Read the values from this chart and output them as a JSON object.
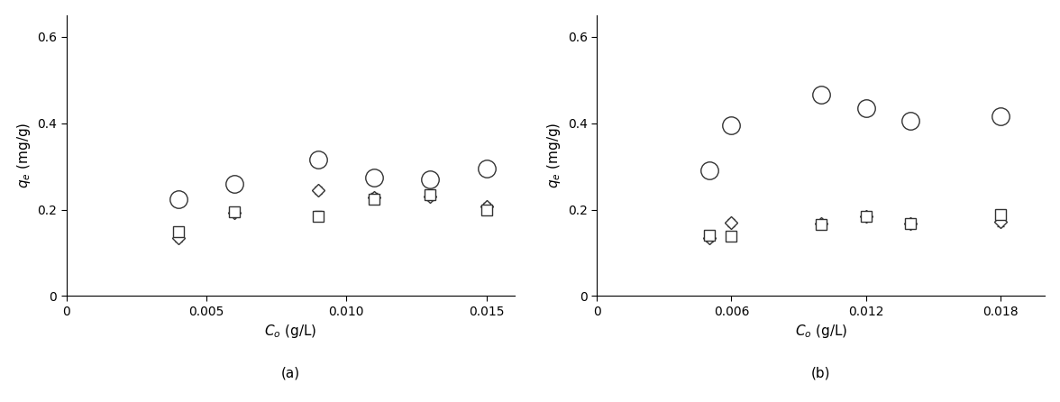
{
  "panel_a": {
    "xlabel_text": "C",
    "xlabel_sub": "o",
    "xlabel_unit": " (g/L)",
    "ylabel_text": "q",
    "ylabel_sub": "e",
    "ylabel_unit": " (mg/g)",
    "label": "(a)",
    "xlim": [
      0,
      0.016
    ],
    "ylim": [
      0,
      0.65
    ],
    "xticks": [
      0,
      0.005,
      0.01,
      0.015
    ],
    "xtick_labels": [
      "0",
      "0.005",
      "0.010",
      "0.015"
    ],
    "yticks": [
      0,
      0.2,
      0.4,
      0.6
    ],
    "ytick_labels": [
      "0",
      "0.2",
      "0.4",
      "0.6"
    ],
    "KN_x": [
      0.004,
      0.006,
      0.009,
      0.011,
      0.013,
      0.015
    ],
    "KN_y": [
      0.135,
      0.192,
      0.245,
      0.228,
      0.23,
      0.207
    ],
    "KN_yerr": [
      0.008,
      0.008,
      0.008,
      0.01,
      0.008,
      0.008
    ],
    "KA_x": [
      0.004,
      0.006,
      0.009,
      0.011,
      0.013,
      0.015
    ],
    "KA_y": [
      0.148,
      0.195,
      0.185,
      0.225,
      0.235,
      0.2
    ],
    "KA_yerr": [
      0.01,
      0.008,
      0.012,
      0.008,
      0.008,
      0.01
    ],
    "KB_x": [
      0.004,
      0.006,
      0.009,
      0.011,
      0.013,
      0.015
    ],
    "KB_y": [
      0.225,
      0.26,
      0.315,
      0.275,
      0.27,
      0.295
    ],
    "KB_yerr": [
      0.012,
      0.01,
      0.01,
      0.01,
      0.01,
      0.01
    ]
  },
  "panel_b": {
    "xlabel_text": "C",
    "xlabel_sub": "o",
    "xlabel_unit": " (g/L)",
    "ylabel_text": "q",
    "ylabel_sub": "e",
    "ylabel_unit": " (mg/g)",
    "label": "(b)",
    "xlim": [
      0,
      0.02
    ],
    "ylim": [
      0,
      0.65
    ],
    "xticks": [
      0,
      0.006,
      0.012,
      0.018
    ],
    "xtick_labels": [
      "0",
      "0.006",
      "0.012",
      "0.018"
    ],
    "yticks": [
      0,
      0.2,
      0.4,
      0.6
    ],
    "ytick_labels": [
      "0",
      "0.2",
      "0.4",
      "0.6"
    ],
    "KN_x": [
      0.005,
      0.006,
      0.01,
      0.012,
      0.014,
      0.018
    ],
    "KN_y": [
      0.135,
      0.17,
      0.168,
      0.185,
      0.168,
      0.172
    ],
    "KN_yerr": [
      0.008,
      0.008,
      0.008,
      0.01,
      0.008,
      0.01
    ],
    "KA_x": [
      0.005,
      0.006,
      0.01,
      0.012,
      0.014,
      0.018
    ],
    "KA_y": [
      0.14,
      0.138,
      0.165,
      0.185,
      0.168,
      0.188
    ],
    "KA_yerr": [
      0.01,
      0.008,
      0.008,
      0.01,
      0.008,
      0.01
    ],
    "KB_x": [
      0.005,
      0.006,
      0.01,
      0.012,
      0.014,
      0.018
    ],
    "KB_y": [
      0.29,
      0.395,
      0.465,
      0.435,
      0.405,
      0.415
    ],
    "KB_yerr": [
      0.012,
      0.01,
      0.012,
      0.01,
      0.012,
      0.01
    ]
  },
  "marker_KN": "D",
  "marker_KA": "s",
  "marker_KB": "o",
  "marker_size_KN": 7,
  "marker_size_KA": 8,
  "marker_size_KB": 14,
  "marker_color": "white",
  "marker_edgecolor": "#333333",
  "ecolor": "#333333",
  "capsize": 3,
  "elinewidth": 1.0,
  "capthick": 1.0,
  "markeredgewidth": 1.0,
  "background_color": "#ffffff",
  "label_fontsize": 11,
  "tick_fontsize": 10,
  "sublabel_fontsize": 11
}
